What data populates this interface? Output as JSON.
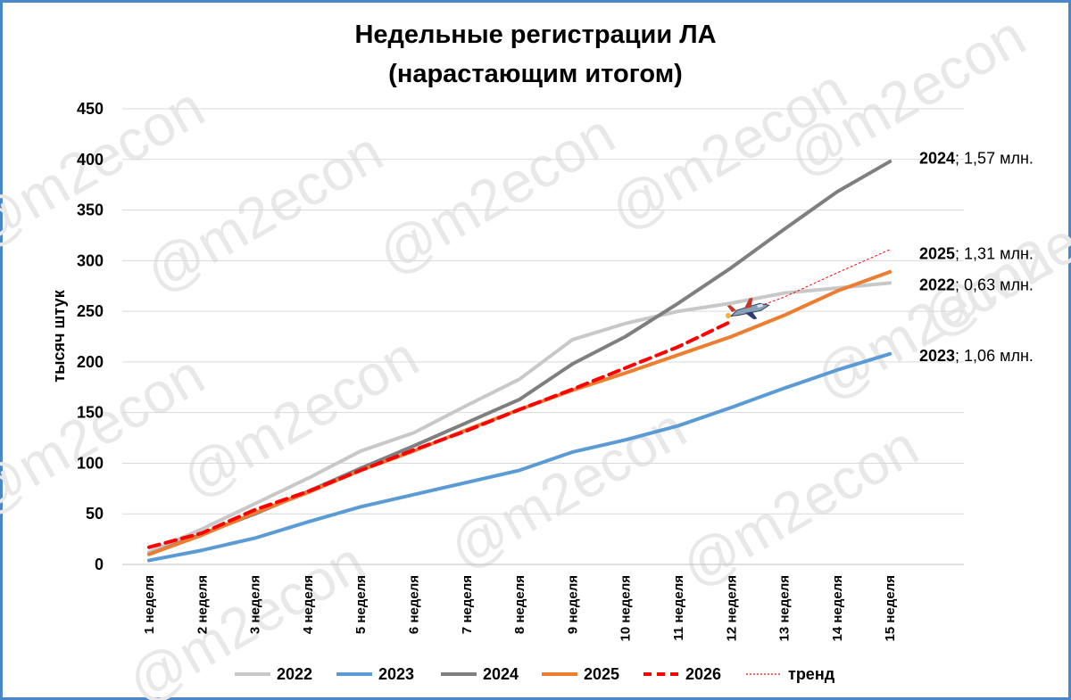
{
  "chart_data": {
    "type": "line",
    "title": [
      "Недельные регистрации ЛА",
      "(нарастающим итогом)"
    ],
    "ylabel": "тысяч штук",
    "xlabel": "",
    "ylim": [
      0,
      450
    ],
    "yticks": [
      0,
      50,
      100,
      150,
      200,
      250,
      300,
      350,
      400,
      450
    ],
    "grid": true,
    "legend_position": "bottom",
    "watermark": "@m2econ",
    "categories": [
      "1 неделя",
      "2 неделя",
      "3 неделя",
      "4 неделя",
      "5 неделя",
      "6 неделя",
      "7 неделя",
      "8 неделя",
      "9 неделя",
      "10 неделя",
      "11 неделя",
      "12 неделя",
      "13 неделя",
      "14 неделя",
      "15 неделя"
    ],
    "series": [
      {
        "name": "2022",
        "color": "#c8c8c8",
        "dash": "solid",
        "width": 4,
        "values": [
          12,
          35,
          60,
          85,
          112,
          130,
          157,
          183,
          222,
          238,
          250,
          258,
          268,
          273,
          278
        ]
      },
      {
        "name": "2023",
        "color": "#5b9bd5",
        "dash": "solid",
        "width": 4,
        "values": [
          4,
          14,
          26,
          42,
          57,
          69,
          81,
          93,
          111,
          123,
          137,
          155,
          174,
          192,
          208
        ]
      },
      {
        "name": "2024",
        "color": "#7f7f7f",
        "dash": "solid",
        "width": 4,
        "values": [
          10,
          30,
          50,
          72,
          95,
          117,
          140,
          163,
          198,
          225,
          258,
          293,
          331,
          368,
          398
        ]
      },
      {
        "name": "2025",
        "color": "#ed7d31",
        "dash": "solid",
        "width": 4,
        "values": [
          10,
          29,
          51,
          71,
          93,
          112,
          133,
          153,
          172,
          189,
          207,
          225,
          246,
          270,
          289
        ]
      },
      {
        "name": "2026",
        "color": "#ff0000",
        "dash": "dashed",
        "width": 4,
        "values": [
          17,
          31,
          54,
          72,
          93,
          113,
          132,
          153,
          173,
          194,
          215,
          240,
          null,
          null,
          null
        ]
      },
      {
        "name": "тренд",
        "color": "#ff0000",
        "dash": "dotted",
        "width": 1,
        "values": [
          null,
          null,
          null,
          null,
          null,
          null,
          null,
          null,
          null,
          null,
          null,
          245,
          264,
          288,
          311
        ]
      }
    ],
    "annotations": [
      {
        "year": "2024",
        "text": "; 1,57 млн.",
        "y": 401
      },
      {
        "year": "2025",
        "text": "; 1,31 млн.",
        "y": 307
      },
      {
        "year": "2022",
        "text": "; 0,63 млн.",
        "y": 276
      },
      {
        "year": "2023",
        "text": "; 1,06 млн.",
        "y": 206
      }
    ],
    "marker": {
      "icon": "airplane-icon",
      "x_index": 11.35,
      "y": 252
    }
  }
}
